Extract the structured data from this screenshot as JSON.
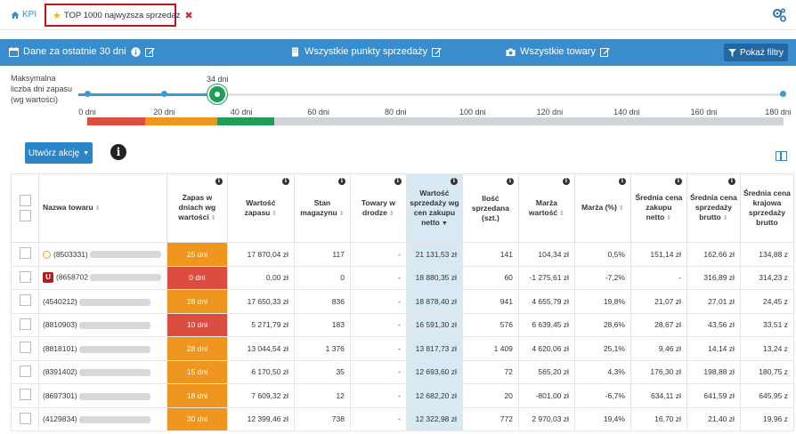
{
  "topbar": {
    "kpi_label": "KPI",
    "tab_label": "TOP 1000 najwyższa sprzedaż"
  },
  "bluebar": {
    "period": "Dane za ostatnie 30 dni",
    "points": "Wszystkie punkty sprzedaży",
    "products": "Wszystkie towary",
    "filter_button": "Pokaż filtry",
    "color": "#3a8dcd"
  },
  "slider": {
    "label": "Maksymalna liczba dni zapasu (wg wartości)",
    "value_label": "34 dni",
    "value": 34,
    "min": 0,
    "max": 180,
    "ticks": [
      "0 dni",
      "20 dni",
      "40 dni",
      "60 dni",
      "80 dni",
      "100 dni",
      "120 dni",
      "140 dni",
      "160 dni",
      "180 dni"
    ]
  },
  "toolbar": {
    "action_button": "Utwórz akcję"
  },
  "table": {
    "headers": [
      "Nazwa towaru",
      "Zapas w dniach wg wartości",
      "Wartość zapasu",
      "Stan magazynu",
      "Towary w drodze",
      "Wartość sprzedaży wg cen zakupu netto",
      "Ilość sprzedana (szt.)",
      "Marża wartość",
      "Marża (%)",
      "Średnia cena zakupu netto",
      "Średnia cena sprzedaży brutto",
      "Średnia cena krajowa sprzedaży brutto"
    ],
    "rows": [
      {
        "name": "(8503331)",
        "badge": "clock",
        "zapas": "25 dni",
        "zapas_color": "#f0961e",
        "wartosc": "17 870,04 zł",
        "stan": "117",
        "droga": "-",
        "sprzedaz": "21 131,53 zł",
        "ilosc": "141",
        "marza": "104,34 zł",
        "marza_pct": "0,5%",
        "zakup": "151,14 zł",
        "sprzedaz_brutto": "162,66 zł",
        "krajowa": "134,88 z"
      },
      {
        "name": "(8658702",
        "badge": "U",
        "zapas": "0 dni",
        "zapas_color": "#dc4c3f",
        "wartosc": "0,00 zł",
        "stan": "0",
        "droga": "-",
        "sprzedaz": "18 880,35 zł",
        "ilosc": "60",
        "marza": "-1 275,61 zł",
        "marza_pct": "-7,2%",
        "zakup": "-",
        "sprzedaz_brutto": "316,89 zł",
        "krajowa": "314,23 z"
      },
      {
        "name": "(4540212)",
        "badge": "",
        "zapas": "28 dni",
        "zapas_color": "#f0961e",
        "wartosc": "17 650,33 zł",
        "stan": "836",
        "droga": "-",
        "sprzedaz": "18 878,40 zł",
        "ilosc": "941",
        "marza": "4 655,79 zł",
        "marza_pct": "19,8%",
        "zakup": "21,07 zł",
        "sprzedaz_brutto": "27,01 zł",
        "krajowa": "24,45 z"
      },
      {
        "name": "(8810903)",
        "badge": "",
        "zapas": "10 dni",
        "zapas_color": "#dc4c3f",
        "wartosc": "5 271,79 zł",
        "stan": "183",
        "droga": "-",
        "sprzedaz": "16 591,30 zł",
        "ilosc": "576",
        "marza": "6 639,45 zł",
        "marza_pct": "28,6%",
        "zakup": "28,67 zł",
        "sprzedaz_brutto": "43,56 zł",
        "krajowa": "33,51 z"
      },
      {
        "name": "(8818101)",
        "badge": "",
        "zapas": "28 dni",
        "zapas_color": "#f0961e",
        "wartosc": "13 044,54 zł",
        "stan": "1 376",
        "droga": "-",
        "sprzedaz": "13 817,73 zł",
        "ilosc": "1 409",
        "marza": "4 620,06 zł",
        "marza_pct": "25,1%",
        "zakup": "9,46 zł",
        "sprzedaz_brutto": "14,14 zł",
        "krajowa": "13,24 z"
      },
      {
        "name": "(8391402)",
        "badge": "",
        "zapas": "15 dni",
        "zapas_color": "#f0961e",
        "wartosc": "6 170,50 zł",
        "stan": "35",
        "droga": "-",
        "sprzedaz": "12 693,60 zł",
        "ilosc": "72",
        "marza": "565,20 zł",
        "marza_pct": "4,3%",
        "zakup": "176,30 zł",
        "sprzedaz_brutto": "198,88 zł",
        "krajowa": "180,75 z"
      },
      {
        "name": "(8697301)",
        "badge": "",
        "zapas": "18 dni",
        "zapas_color": "#f0961e",
        "wartosc": "7 609,32 zł",
        "stan": "12",
        "droga": "-",
        "sprzedaz": "12 682,20 zł",
        "ilosc": "20",
        "marza": "-801,00 zł",
        "marza_pct": "-6,7%",
        "zakup": "634,11 zł",
        "sprzedaz_brutto": "641,59 zł",
        "krajowa": "645,95 z"
      },
      {
        "name": "(4129834)",
        "badge": "",
        "zapas": "30 dni",
        "zapas_color": "#f0961e",
        "wartosc": "12 399,46 zł",
        "stan": "738",
        "droga": "-",
        "sprzedaz": "12 322,98 zł",
        "ilosc": "772",
        "marza": "2 970,03 zł",
        "marza_pct": "19,4%",
        "zakup": "16,70 zł",
        "sprzedaz_brutto": "21,40 zł",
        "krajowa": "19,96 z"
      }
    ]
  }
}
